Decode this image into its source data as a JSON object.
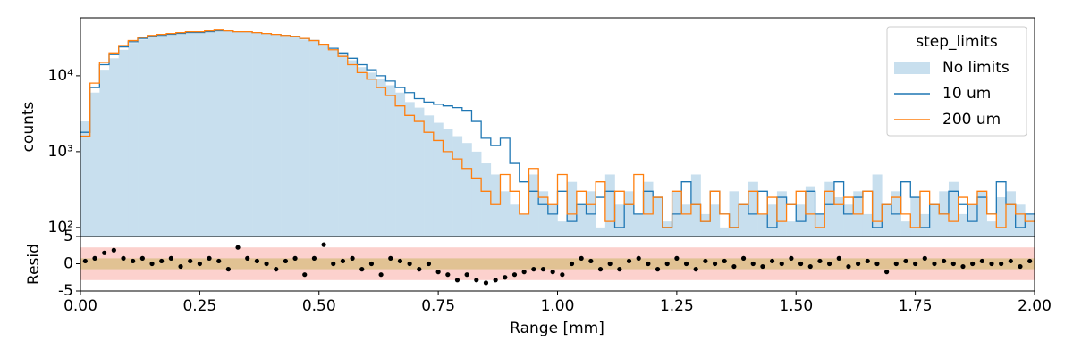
{
  "chart_data": {
    "type": "step_histogram",
    "ylabel": "counts",
    "xlabel": "Range [mm]",
    "yscale": "log",
    "xlim": [
      0,
      2
    ],
    "xticks": [
      {
        "value": 0,
        "label": "0.00"
      },
      {
        "value": 0.25,
        "label": "0.25"
      },
      {
        "value": 0.5,
        "label": "0.50"
      },
      {
        "value": 0.75,
        "label": "0.75"
      },
      {
        "value": 1,
        "label": "1.00"
      },
      {
        "value": 1.25,
        "label": "1.25"
      },
      {
        "value": 1.5,
        "label": "1.50"
      },
      {
        "value": 1.75,
        "label": "1.75"
      },
      {
        "value": 2,
        "label": "2.00"
      }
    ],
    "ylim": [
      76,
      58000
    ],
    "yticks": [
      {
        "value": 100,
        "label": "10²"
      },
      {
        "value": 1000,
        "label": "10³"
      },
      {
        "value": 10000,
        "label": "10⁴"
      }
    ],
    "legend_title": "step_limits",
    "legend_loc": "upper right",
    "bins": [
      0,
      0.02,
      0.04,
      0.06,
      0.08,
      0.1,
      0.12,
      0.14,
      0.16,
      0.18,
      0.2,
      0.22,
      0.24,
      0.26,
      0.28,
      0.3,
      0.32,
      0.34,
      0.36,
      0.38,
      0.4,
      0.42,
      0.44,
      0.46,
      0.48,
      0.5,
      0.52,
      0.54,
      0.56,
      0.58,
      0.6,
      0.62,
      0.64,
      0.66,
      0.68,
      0.7,
      0.72,
      0.74,
      0.76,
      0.78,
      0.8,
      0.82,
      0.84,
      0.86,
      0.88,
      0.9,
      0.92,
      0.94,
      0.96,
      0.98,
      1,
      1.02,
      1.04,
      1.06,
      1.08,
      1.1,
      1.12,
      1.14,
      1.16,
      1.18,
      1.2,
      1.22,
      1.24,
      1.26,
      1.28,
      1.3,
      1.32,
      1.34,
      1.36,
      1.38,
      1.4,
      1.42,
      1.44,
      1.46,
      1.48,
      1.5,
      1.52,
      1.54,
      1.56,
      1.58,
      1.6,
      1.62,
      1.64,
      1.66,
      1.68,
      1.7,
      1.72,
      1.74,
      1.76,
      1.78,
      1.8,
      1.82,
      1.84,
      1.86,
      1.88,
      1.9,
      1.92,
      1.94,
      1.96,
      1.98,
      2
    ],
    "series": [
      {
        "name": "No limits",
        "style": "filled",
        "color": "#c8dfee",
        "values": [
          2500,
          6000,
          12000,
          17000,
          22000,
          27000,
          30000,
          32000,
          33000,
          34000,
          35000,
          36000,
          36000,
          37000,
          38000,
          38000,
          37000,
          37000,
          36000,
          35000,
          34000,
          33000,
          32000,
          30000,
          28000,
          25000,
          22000,
          19000,
          16000,
          13000,
          11000,
          9000,
          7500,
          6000,
          4500,
          3800,
          3000,
          2400,
          2000,
          1600,
          1300,
          1000,
          700,
          500,
          300,
          200,
          150,
          500,
          300,
          200,
          120,
          400,
          200,
          300,
          100,
          500,
          200,
          300,
          150,
          400,
          250,
          120,
          300,
          200,
          500,
          150,
          200,
          100,
          300,
          200,
          400,
          150,
          200,
          300,
          120,
          200,
          350,
          150,
          400,
          250,
          200,
          300,
          150,
          500,
          200,
          300,
          120,
          250,
          150,
          200,
          300,
          400,
          150,
          200,
          300,
          120,
          250,
          300,
          200,
          150
        ]
      },
      {
        "name": "10 um",
        "style": "step",
        "color": "#1f77b4",
        "values": [
          1800,
          7000,
          14000,
          19000,
          24000,
          28000,
          31000,
          33000,
          34000,
          35000,
          36000,
          37000,
          37000,
          38000,
          39000,
          39000,
          38000,
          38000,
          37000,
          36000,
          35000,
          34000,
          33000,
          31000,
          29000,
          26000,
          23000,
          20000,
          17000,
          14000,
          12000,
          10000,
          8500,
          7000,
          6000,
          5000,
          4500,
          4200,
          4000,
          3800,
          3500,
          2500,
          1500,
          1200,
          1500,
          700,
          400,
          300,
          200,
          150,
          300,
          120,
          200,
          150,
          250,
          300,
          100,
          200,
          150,
          300,
          250,
          100,
          150,
          400,
          200,
          120,
          300,
          150,
          100,
          200,
          150,
          300,
          100,
          250,
          200,
          120,
          300,
          150,
          200,
          400,
          150,
          250,
          300,
          100,
          200,
          150,
          400,
          250,
          100,
          200,
          150,
          300,
          200,
          120,
          250,
          150,
          400,
          200,
          100,
          150
        ]
      },
      {
        "name": "200 um",
        "style": "step",
        "color": "#ff7f0e",
        "values": [
          1600,
          8000,
          15000,
          20000,
          25000,
          29000,
          32000,
          34000,
          35000,
          36000,
          37000,
          38000,
          38000,
          39000,
          40000,
          39000,
          38000,
          38000,
          37000,
          36000,
          35000,
          34000,
          33000,
          31000,
          29000,
          26000,
          22000,
          18000,
          14000,
          11000,
          9000,
          7000,
          5500,
          4000,
          3000,
          2500,
          1800,
          1400,
          1000,
          800,
          600,
          450,
          300,
          200,
          500,
          300,
          150,
          600,
          250,
          200,
          500,
          150,
          300,
          200,
          400,
          120,
          300,
          200,
          500,
          150,
          250,
          100,
          300,
          150,
          200,
          120,
          300,
          150,
          100,
          200,
          300,
          150,
          250,
          120,
          200,
          300,
          150,
          100,
          300,
          200,
          250,
          150,
          300,
          120,
          200,
          250,
          150,
          100,
          300,
          200,
          150,
          120,
          250,
          200,
          300,
          150,
          100,
          200,
          150,
          120
        ]
      }
    ],
    "residuals": {
      "ylabel": "Resid",
      "ylim": [
        -5,
        5
      ],
      "yticks": [
        -5,
        0,
        5
      ],
      "bands": [
        {
          "limit": 3,
          "color": "#fbc9c4"
        },
        {
          "limit": 1,
          "color": "#dcc088"
        }
      ],
      "values": [
        0.5,
        1,
        2,
        2.5,
        1,
        0.5,
        1,
        0,
        0.5,
        1,
        -0.5,
        0.5,
        0,
        1,
        0.5,
        -1,
        3,
        1,
        0.5,
        0,
        -1,
        0.5,
        1,
        -2,
        1,
        3.5,
        0,
        0.5,
        1,
        -1,
        0,
        -2,
        1,
        0.5,
        0,
        -1,
        0,
        -1.5,
        -2,
        -3,
        -2,
        -3,
        -3.5,
        -3,
        -2.5,
        -2,
        -1.5,
        -1,
        -1,
        -1.5,
        -2,
        0,
        1,
        0.5,
        -1,
        0,
        -1,
        0.5,
        1,
        0,
        -1,
        0,
        1,
        0,
        -1,
        0.5,
        0,
        0.5,
        -0.5,
        1,
        0,
        -0.5,
        0.5,
        0,
        1,
        0,
        -0.5,
        0.5,
        0,
        1,
        -0.5,
        0,
        0.5,
        0,
        -1.5,
        0,
        0.5,
        0,
        1,
        0,
        0.5,
        0,
        -0.5,
        0,
        0.5,
        0,
        0,
        0.5,
        -0.5,
        0.5
      ],
      "color": "#000000"
    }
  }
}
